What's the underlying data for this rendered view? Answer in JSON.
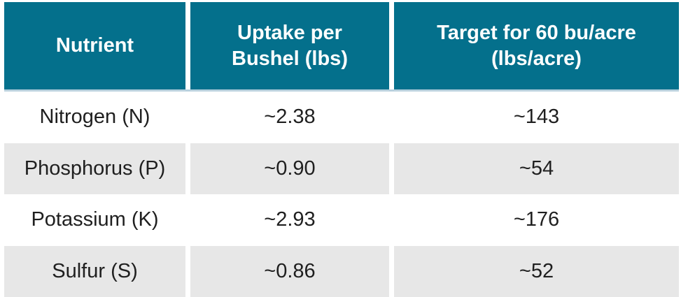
{
  "chart_data": {
    "type": "table",
    "columns": [
      "Nutrient",
      "Uptake per Bushel (lbs)",
      "Target for 60 bu/acre (lbs/acre)"
    ],
    "rows": [
      [
        "Nitrogen (N)",
        "~2.38",
        "~143"
      ],
      [
        "Phosphorus (P)",
        "~0.90",
        "~54"
      ],
      [
        "Potassium (K)",
        "~2.93",
        "~176"
      ],
      [
        "Sulfur (S)",
        "~0.86",
        "~52"
      ]
    ],
    "numeric": {
      "uptake_per_bushel_lbs": [
        2.38,
        0.9,
        2.93,
        0.86
      ],
      "target_for_60_bu_acre_lbs_per_acre": [
        143,
        54,
        176,
        52
      ]
    },
    "layout_hints": {
      "header_style": "teal background, bold white text",
      "row_striping": "white / light gray alternating",
      "column_gutters": "white vertical gaps between columns"
    }
  },
  "colors": {
    "background": "#FFFFFF",
    "header_bg": "#04708C",
    "header_text": "#FFFFFF",
    "header_underline": "#B9D1DE",
    "row_even_bg": "#FFFFFF",
    "row_odd_bg": "#E7E7E7",
    "body_text": "#1F1F1F"
  }
}
